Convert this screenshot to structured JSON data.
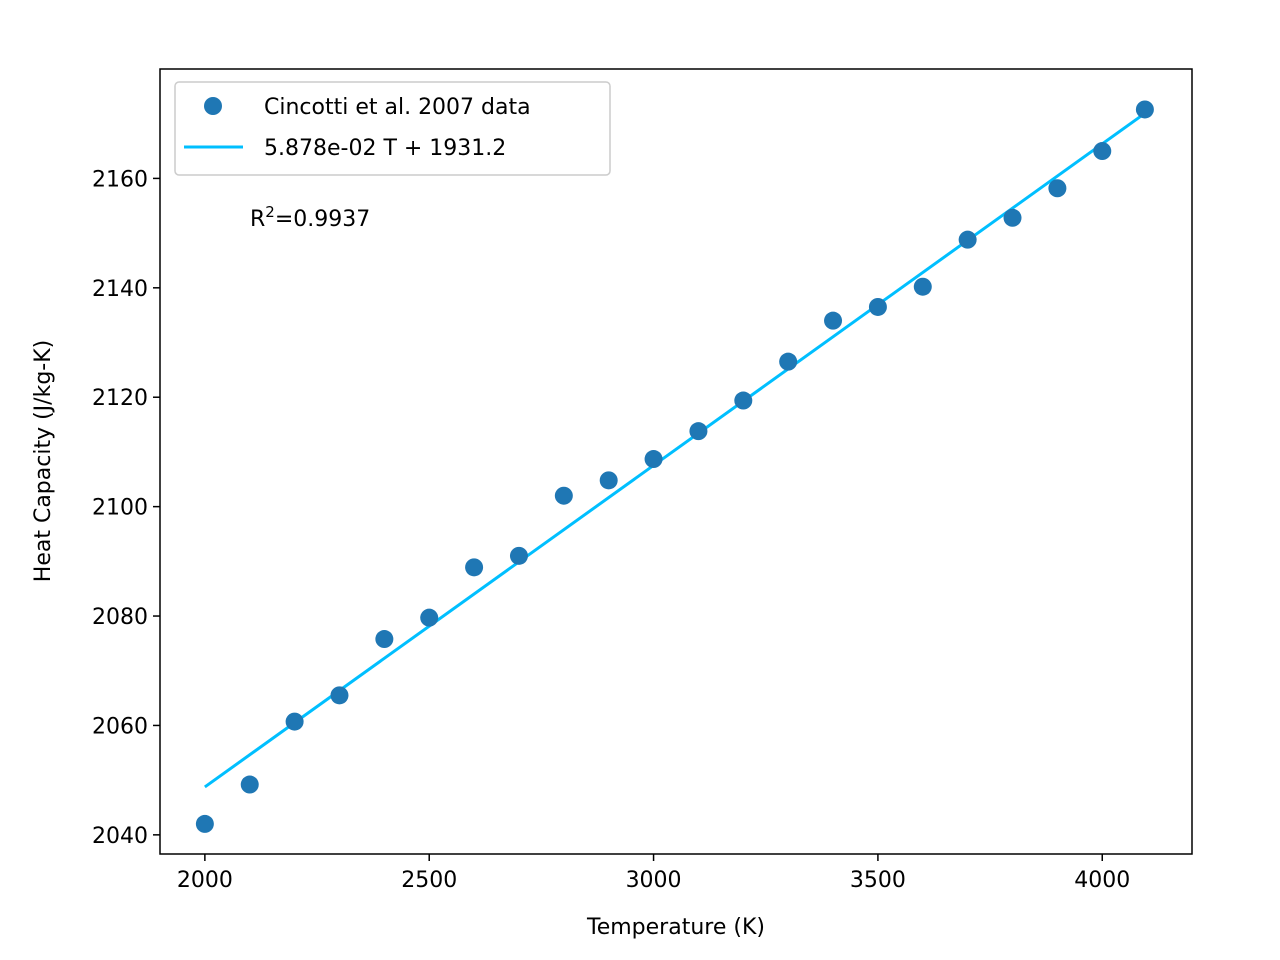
{
  "chart_data": {
    "type": "scatter",
    "xlabel": "Temperature (K)",
    "ylabel": "Heat Capacity (J/kg-K)",
    "xlim": [
      1900,
      4200
    ],
    "ylim": [
      2036.5,
      2180
    ],
    "xticks": [
      2000,
      2500,
      3000,
      3500,
      4000
    ],
    "yticks": [
      2040,
      2060,
      2080,
      2100,
      2120,
      2140,
      2160
    ],
    "legend_position": "upper-left",
    "grid": false,
    "series": [
      {
        "name": "Cincotti et al. 2007 data",
        "kind": "scatter",
        "color": "#1f77b4",
        "x": [
          2000,
          2100,
          2200,
          2300,
          2400,
          2500,
          2600,
          2700,
          2800,
          2900,
          3000,
          3100,
          3200,
          3300,
          3400,
          3500,
          3600,
          3700,
          3800,
          3900,
          4000,
          4095
        ],
        "y": [
          2042.0,
          2049.2,
          2060.7,
          2065.5,
          2075.8,
          2079.7,
          2088.9,
          2091.0,
          2102.0,
          2104.8,
          2108.7,
          2113.8,
          2119.4,
          2126.5,
          2134.0,
          2136.5,
          2140.2,
          2148.8,
          2152.8,
          2158.2,
          2165.0,
          2172.6
        ]
      },
      {
        "name": "5.878e-02 T + 1931.2",
        "kind": "line",
        "color": "#00bfff",
        "x": [
          2000,
          4095
        ],
        "y": [
          2048.76,
          2171.9
        ]
      }
    ],
    "annotations": [
      {
        "text": "R²=0.9937",
        "x": 2100,
        "y": 2150.0
      }
    ]
  }
}
